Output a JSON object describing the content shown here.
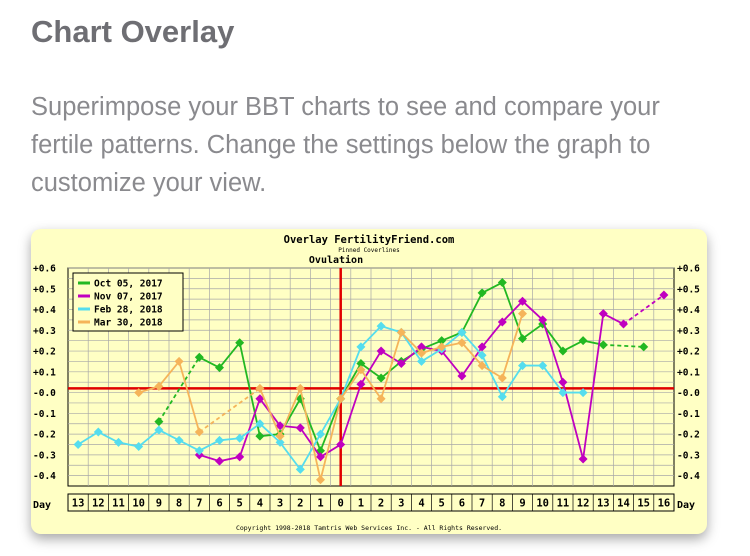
{
  "page": {
    "heading": "Chart Overlay",
    "description": "Superimpose your BBT charts to see and compare your fertile patterns. Change the settings below the graph to customize your view."
  },
  "chart_data": {
    "type": "line",
    "title": "Overlay FertilityFriend.com",
    "subtitle": "Pinned Coverlines",
    "alignment_label": "Ovulation",
    "xlabel": "Day",
    "copyright": "Copyright 1998-2018 Tamtris Web Services Inc. - All Rights Reserved.",
    "x": [
      -13,
      -12,
      -11,
      -10,
      -9,
      -8,
      -7,
      -6,
      -5,
      -4,
      -3,
      -2,
      -1,
      0,
      1,
      2,
      3,
      4,
      5,
      6,
      7,
      8,
      9,
      10,
      11,
      12,
      13,
      14,
      15,
      16
    ],
    "x_tick_labels": [
      "13",
      "12",
      "11",
      "10",
      "9",
      "8",
      "7",
      "6",
      "5",
      "4",
      "3",
      "2",
      "1",
      "0",
      "1",
      "2",
      "3",
      "4",
      "5",
      "6",
      "7",
      "8",
      "9",
      "10",
      "11",
      "12",
      "13",
      "14",
      "15",
      "16"
    ],
    "y_tick_labels": [
      "+0.6",
      "+0.5",
      "+0.4",
      "+0.3",
      "+0.2",
      "+0.1",
      "-0.0",
      "-0.1",
      "-0.2",
      "-0.3",
      "-0.4"
    ],
    "ylim": [
      -0.45,
      0.6
    ],
    "coverline": 0.02,
    "ovulation_day": 0,
    "grid": true,
    "legend_position": "top-left",
    "series": [
      {
        "name": "Oct 05, 2017",
        "color": "#22b822",
        "values": [
          null,
          null,
          null,
          null,
          -0.14,
          null,
          0.17,
          0.12,
          0.24,
          -0.21,
          -0.2,
          -0.03,
          -0.28,
          -0.03,
          0.14,
          0.07,
          0.15,
          0.21,
          0.25,
          0.29,
          0.48,
          0.53,
          0.26,
          0.33,
          0.2,
          0.25,
          0.23,
          null,
          0.22,
          null
        ],
        "dashed_segments": [
          [
            -9,
            -7
          ],
          [
            13,
            15
          ]
        ]
      },
      {
        "name": "Nov 07, 2017",
        "color": "#c000c0",
        "values": [
          null,
          null,
          null,
          null,
          null,
          null,
          -0.3,
          -0.33,
          -0.31,
          -0.03,
          -0.16,
          -0.17,
          -0.31,
          -0.25,
          0.04,
          0.2,
          0.14,
          0.22,
          0.2,
          0.08,
          0.22,
          0.34,
          0.44,
          0.35,
          0.05,
          -0.32,
          0.38,
          0.33,
          null,
          0.47
        ],
        "dashed_segments": [
          [
            14,
            16
          ]
        ]
      },
      {
        "name": "Feb 28, 2018",
        "color": "#55ddee",
        "values": [
          -0.25,
          -0.19,
          -0.24,
          -0.26,
          -0.18,
          -0.23,
          -0.28,
          -0.23,
          -0.22,
          -0.15,
          -0.24,
          -0.37,
          -0.2,
          -0.03,
          0.22,
          0.32,
          0.29,
          0.15,
          0.21,
          0.29,
          0.18,
          -0.02,
          0.13,
          0.13,
          0.0,
          0.0,
          null,
          null,
          null,
          null
        ],
        "dashed_segments": []
      },
      {
        "name": "Mar 30, 2018",
        "color": "#f5b45a",
        "values": [
          null,
          null,
          null,
          0.0,
          0.03,
          0.15,
          -0.19,
          null,
          null,
          0.02,
          -0.21,
          0.02,
          -0.42,
          -0.03,
          0.11,
          -0.03,
          0.29,
          0.19,
          0.22,
          0.24,
          0.13,
          0.07,
          0.38,
          null,
          null,
          null,
          null,
          null,
          null,
          null
        ],
        "dashed_segments": [
          [
            -7,
            -4
          ]
        ]
      }
    ]
  }
}
